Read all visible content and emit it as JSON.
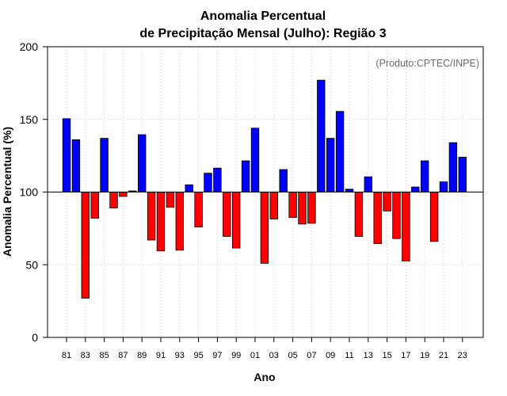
{
  "chart_data": {
    "type": "bar",
    "title": "Anomalia Percentual",
    "subtitle": "de Precipitação Mensal (Julho): Região 3",
    "xlabel": "Ano",
    "ylabel": "Anomalia Percentual (%)",
    "annotation": "(Produto:CPTEC/INPE)",
    "ylim": [
      0,
      200
    ],
    "yticks": [
      0,
      50,
      100,
      150,
      200
    ],
    "baseline": 100,
    "grid": true,
    "colors": {
      "above": "#0000ff",
      "below": "#ff0000",
      "edge": "#000000",
      "grid": "#d9d9d9"
    },
    "categories": [
      "81",
      "82",
      "83",
      "84",
      "85",
      "86",
      "87",
      "88",
      "89",
      "90",
      "91",
      "92",
      "93",
      "94",
      "95",
      "96",
      "97",
      "98",
      "99",
      "00",
      "01",
      "02",
      "03",
      "04",
      "05",
      "06",
      "07",
      "08",
      "09",
      "10",
      "11",
      "12",
      "13",
      "14",
      "15",
      "16",
      "17",
      "18",
      "19",
      "20",
      "21",
      "22",
      "23"
    ],
    "xtick_labels": [
      "81",
      "83",
      "85",
      "87",
      "89",
      "91",
      "93",
      "95",
      "97",
      "99",
      "01",
      "03",
      "05",
      "07",
      "09",
      "11",
      "13",
      "15",
      "17",
      "19",
      "21",
      "23"
    ],
    "values": [
      150.5,
      136,
      27,
      82,
      137,
      89,
      97,
      100.8,
      139.5,
      67,
      59.5,
      89.5,
      60,
      105,
      76,
      113,
      116.5,
      69.5,
      61.5,
      121.5,
      144,
      51,
      81.5,
      115.5,
      82.5,
      78,
      78.5,
      177,
      137,
      155.5,
      102,
      69.5,
      110.5,
      64.5,
      87,
      68,
      52.5,
      103.5,
      121.5,
      66,
      107,
      134,
      124
    ]
  }
}
